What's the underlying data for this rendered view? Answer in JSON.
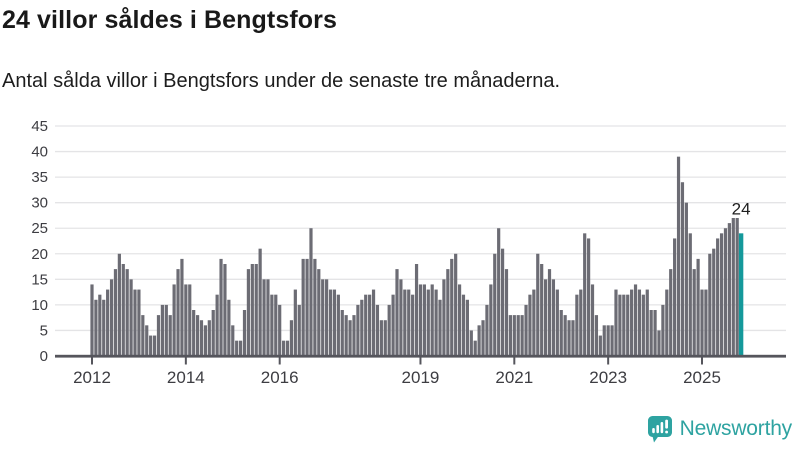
{
  "header": {
    "title": "24 villor såldes i Bengtsfors",
    "subtitle": "Antal sålda villor i Bengtsfors under de senaste tre månaderna."
  },
  "chart_data": {
    "type": "bar",
    "title": "24 villor såldes i Bengtsfors",
    "subtitle": "Antal sålda villor i Bengtsfors under de senaste tre månaderna.",
    "x_start": "2012-01",
    "x_frequency": "monthly",
    "values": [
      14,
      11,
      12,
      11,
      13,
      15,
      17,
      20,
      18,
      17,
      15,
      13,
      13,
      8,
      6,
      4,
      4,
      8,
      10,
      10,
      8,
      14,
      17,
      19,
      14,
      14,
      9,
      8,
      7,
      6,
      7,
      9,
      12,
      19,
      18,
      11,
      6,
      3,
      3,
      9,
      17,
      18,
      18,
      21,
      15,
      15,
      12,
      12,
      10,
      3,
      3,
      7,
      13,
      10,
      19,
      19,
      25,
      19,
      17,
      15,
      15,
      13,
      13,
      12,
      9,
      8,
      7,
      8,
      10,
      11,
      12,
      12,
      13,
      10,
      7,
      7,
      10,
      12,
      17,
      15,
      13,
      13,
      12,
      18,
      14,
      14,
      13,
      14,
      13,
      11,
      15,
      17,
      19,
      20,
      14,
      12,
      11,
      5,
      3,
      6,
      7,
      10,
      14,
      20,
      25,
      21,
      17,
      8,
      8,
      8,
      8,
      10,
      12,
      13,
      20,
      18,
      15,
      17,
      15,
      13,
      9,
      8,
      7,
      7,
      12,
      13,
      24,
      23,
      14,
      8,
      4,
      6,
      6,
      6,
      13,
      12,
      12,
      12,
      13,
      14,
      13,
      12,
      13,
      9,
      9,
      5,
      10,
      13,
      17,
      23,
      39,
      34,
      30,
      24,
      17,
      19,
      13,
      13,
      20,
      21,
      23,
      24,
      25,
      26,
      27,
      27,
      24
    ],
    "highlight": {
      "index": 166,
      "value": 24,
      "label": "24"
    },
    "annotation": "24",
    "ylim": [
      0,
      45
    ],
    "yticks": [
      0,
      5,
      10,
      15,
      20,
      25,
      30,
      35,
      40,
      45
    ],
    "xticks": [
      2012,
      2014,
      2016,
      2019,
      2021,
      2023,
      2025
    ],
    "grid": true,
    "legend": "none",
    "colors": {
      "bar": "#6c6c74",
      "highlight": "#14999b",
      "grid": "#e4e4e6",
      "axis": "#55555c",
      "tick_label": "#3d3d42",
      "annotation_text": "#1f1f1f"
    }
  },
  "footer": {
    "brand": "Newsworthy",
    "logo_icon": "bar-chart-speech-bubble-icon",
    "brand_color": "#2ea3a1"
  }
}
